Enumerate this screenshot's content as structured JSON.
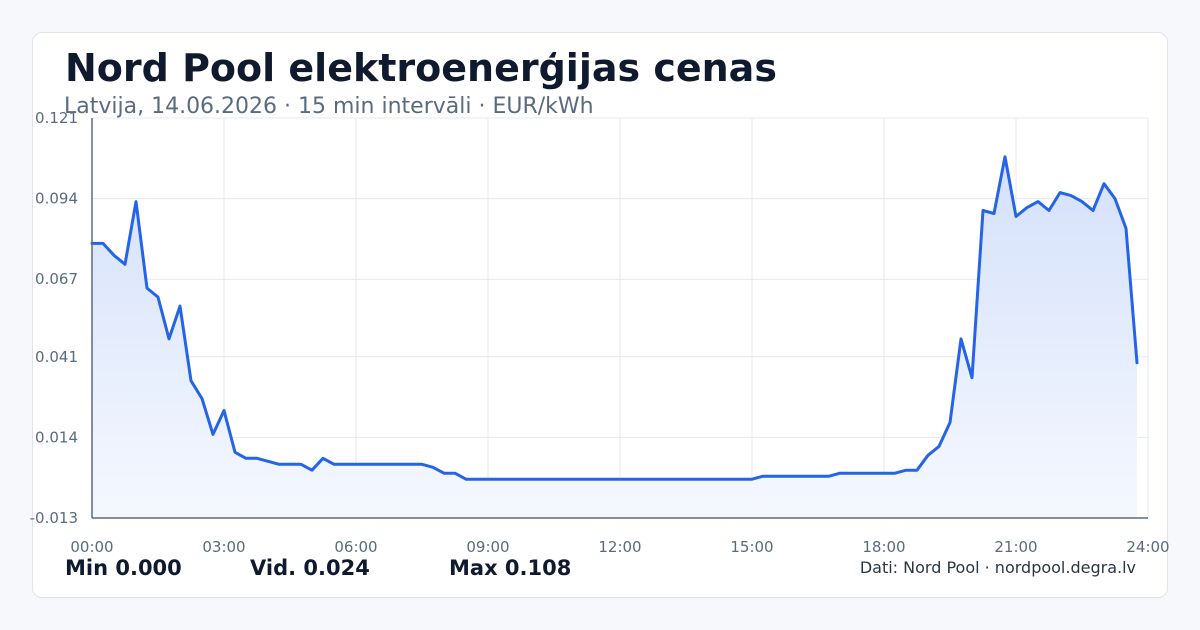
{
  "header": {
    "title": "Nord Pool elektroenerģijas cenas",
    "subtitle": "Latvija, 14.06.2026 · 15 min intervāli · EUR/kWh"
  },
  "stats": {
    "min": "Min 0.000",
    "avg": "Vid. 0.024",
    "max": "Max 0.108"
  },
  "footer": {
    "source": "Dati: Nord Pool · nordpool.degra.lv"
  },
  "colors": {
    "line": "#2563e8",
    "fill_top": "#d4e1fb",
    "fill_bottom": "#f5f8fe",
    "grid": "#e4e8ee",
    "axis": "#5a6b80",
    "tick_text": "#5a6b80"
  },
  "chart_data": {
    "type": "area",
    "title": "Nord Pool elektroenerģijas cenas",
    "xlabel": "",
    "ylabel": "",
    "xlim": [
      0,
      24
    ],
    "ylim": [
      -0.013,
      0.121
    ],
    "y_ticks": [
      -0.013,
      0.014,
      0.041,
      0.067,
      0.094,
      0.121
    ],
    "y_tick_labels": [
      "-0.013",
      "0.014",
      "0.041",
      "0.067",
      "0.094",
      "0.121"
    ],
    "x_ticks": [
      0,
      3,
      6,
      9,
      12,
      15,
      18,
      21,
      24
    ],
    "x_tick_labels": [
      "00:00",
      "03:00",
      "06:00",
      "09:00",
      "12:00",
      "15:00",
      "18:00",
      "21:00",
      "24:00"
    ],
    "grid": true,
    "legend": "none",
    "series": [
      {
        "x": [
          0,
          0.25,
          0.5,
          0.75,
          1.0,
          1.25,
          1.5,
          1.75,
          2.0,
          2.25,
          2.5,
          2.75,
          3.0,
          3.25,
          3.5,
          3.75,
          4.0,
          4.25,
          4.5,
          4.75,
          5.0,
          5.25,
          5.5,
          5.75,
          6.0,
          6.25,
          6.5,
          6.75,
          7.0,
          7.25,
          7.5,
          7.75,
          8.0,
          8.25,
          8.5,
          8.75,
          9.0,
          9.25,
          9.5,
          9.75,
          10.0,
          10.25,
          10.5,
          10.75,
          11.0,
          11.25,
          11.5,
          11.75,
          12.0,
          12.25,
          12.5,
          12.75,
          13.0,
          13.25,
          13.5,
          13.75,
          14.0,
          14.25,
          14.5,
          14.75,
          15.0,
          15.25,
          15.5,
          15.75,
          16.0,
          16.25,
          16.5,
          16.75,
          17.0,
          17.25,
          17.5,
          17.75,
          18.0,
          18.25,
          18.5,
          18.75,
          19.0,
          19.25,
          19.5,
          19.75,
          20.0,
          20.25,
          20.5,
          20.75,
          21.0,
          21.25,
          21.5,
          21.75,
          22.0,
          22.25,
          22.5,
          22.75,
          23.0,
          23.25,
          23.5,
          23.75
        ],
        "values": [
          0.079,
          0.079,
          0.075,
          0.072,
          0.093,
          0.064,
          0.061,
          0.047,
          0.058,
          0.033,
          0.027,
          0.015,
          0.023,
          0.009,
          0.007,
          0.007,
          0.006,
          0.005,
          0.005,
          0.005,
          0.003,
          0.007,
          0.005,
          0.005,
          0.005,
          0.005,
          0.005,
          0.005,
          0.005,
          0.005,
          0.005,
          0.004,
          0.002,
          0.002,
          0.0,
          0.0,
          0.0,
          0.0,
          0.0,
          0.0,
          0.0,
          0.0,
          0.0,
          0.0,
          0.0,
          0.0,
          0.0,
          0.0,
          0.0,
          0.0,
          0.0,
          0.0,
          0.0,
          0.0,
          0.0,
          0.0,
          0.0,
          0.0,
          0.0,
          0.0,
          0.0,
          0.001,
          0.001,
          0.001,
          0.001,
          0.001,
          0.001,
          0.001,
          0.002,
          0.002,
          0.002,
          0.002,
          0.002,
          0.002,
          0.003,
          0.003,
          0.008,
          0.011,
          0.019,
          0.047,
          0.034,
          0.09,
          0.089,
          0.108,
          0.088,
          0.091,
          0.093,
          0.09,
          0.096,
          0.095,
          0.093,
          0.09,
          0.099,
          0.094,
          0.084,
          0.039
        ]
      }
    ]
  }
}
